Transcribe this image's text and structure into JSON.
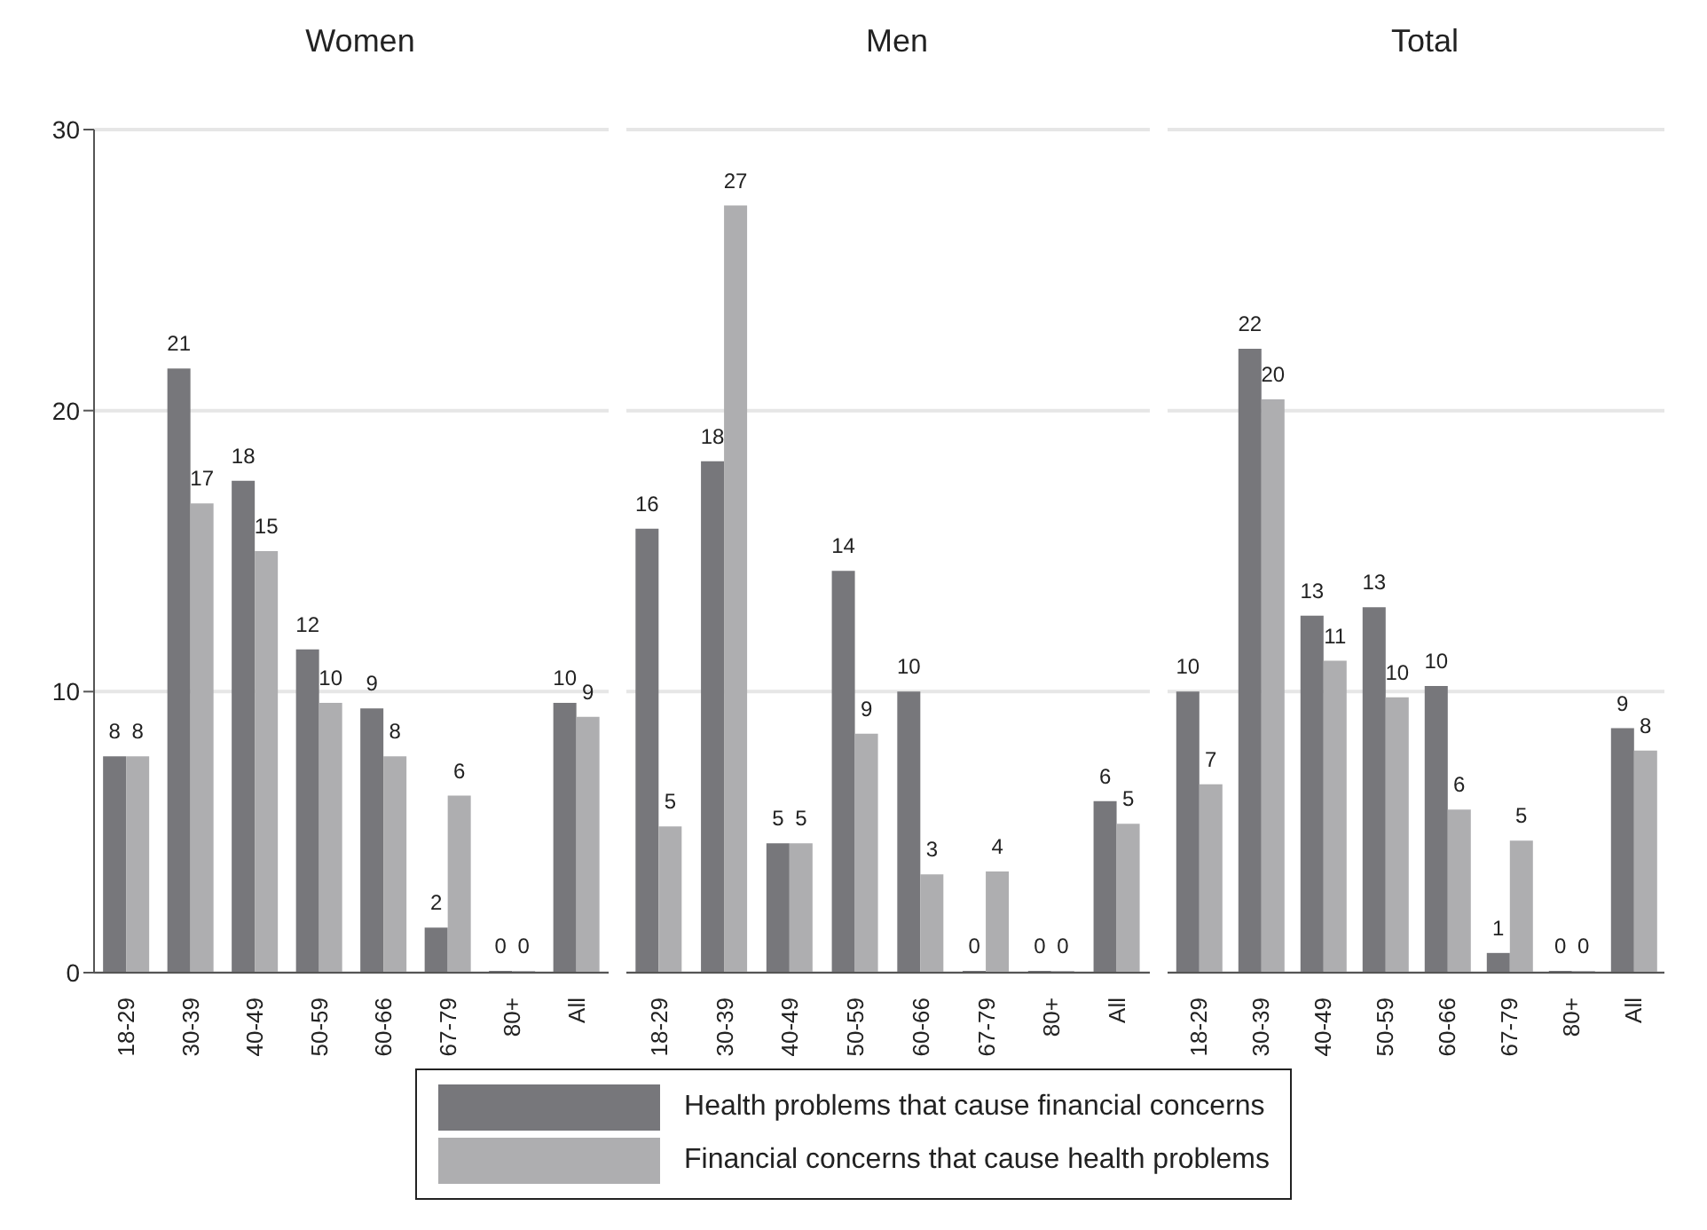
{
  "chart_data": [
    {
      "type": "bar",
      "title": "Women",
      "categories": [
        "18-29",
        "30-39",
        "40-49",
        "50-59",
        "60-66",
        "67-79",
        "80+",
        "All"
      ],
      "ylim": [
        0,
        30
      ],
      "yticks": [
        0,
        10,
        20,
        30
      ],
      "grid": "y",
      "legend": "bottom",
      "series": [
        {
          "name": "Health problems that cause financial concerns",
          "color": "#77777b",
          "values": [
            7.7,
            21.5,
            17.5,
            11.5,
            9.4,
            1.6,
            0,
            9.6
          ],
          "value_labels": [
            "8",
            "21",
            "18",
            "12",
            "9",
            "2",
            "0",
            "10"
          ]
        },
        {
          "name": "Financial concerns that cause health problems",
          "color": "#aeaeb0",
          "values": [
            7.7,
            16.7,
            15.0,
            9.6,
            7.7,
            6.3,
            0,
            9.1
          ],
          "value_labels": [
            "8",
            "17",
            "15",
            "10",
            "8",
            "6",
            "0",
            "9"
          ]
        }
      ]
    },
    {
      "type": "bar",
      "title": "Men",
      "categories": [
        "18-29",
        "30-39",
        "40-49",
        "50-59",
        "60-66",
        "67-79",
        "80+",
        "All"
      ],
      "ylim": [
        0,
        30
      ],
      "yticks": [
        0,
        10,
        20,
        30
      ],
      "grid": "y",
      "tick_labels": "x",
      "series": [
        {
          "color": "#77777b",
          "values": [
            15.8,
            18.2,
            4.6,
            14.3,
            10.0,
            0,
            0,
            6.1
          ],
          "value_labels": [
            "16",
            "18",
            "5",
            "14",
            "10",
            "0",
            "0",
            "6"
          ]
        },
        {
          "color": "#aeaeb0",
          "values": [
            5.2,
            27.3,
            4.6,
            8.5,
            3.5,
            3.6,
            0,
            5.3
          ],
          "value_labels": [
            "5",
            "27",
            "5",
            "9",
            "3",
            "4",
            "0",
            "5"
          ]
        }
      ]
    },
    {
      "type": "bar",
      "title": "Total",
      "categories": [
        "18-29",
        "30-39",
        "40-49",
        "50-59",
        "60-66",
        "67-79",
        "80+",
        "All"
      ],
      "ylim": [
        0,
        30
      ],
      "yticks": [
        0,
        10,
        20,
        30
      ],
      "grid": "y",
      "tick_labels": "x",
      "series": [
        {
          "color": "#77777b",
          "values": [
            10.0,
            22.2,
            12.7,
            13.0,
            10.2,
            0.7,
            0,
            8.7
          ],
          "value_labels": [
            "10",
            "22",
            "13",
            "13",
            "10",
            "1",
            "0",
            "9"
          ]
        },
        {
          "color": "#aeaeb0",
          "values": [
            6.7,
            20.4,
            11.1,
            9.8,
            5.8,
            4.7,
            0,
            7.9
          ],
          "value_labels": [
            "7",
            "20",
            "11",
            "10",
            "6",
            "5",
            "0",
            "8"
          ]
        }
      ]
    }
  ]
}
